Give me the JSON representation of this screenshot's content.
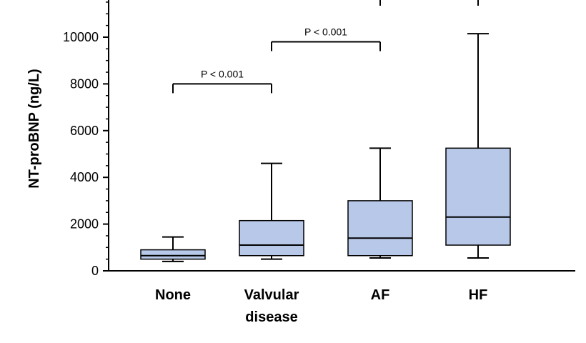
{
  "chart_data": {
    "type": "box",
    "ylabel": "NT-proBNP (ng/L)",
    "ylim": [
      0,
      12000
    ],
    "yticks": [
      0,
      2000,
      4000,
      6000,
      8000,
      10000
    ],
    "categories": [
      {
        "label_lines": [
          "None"
        ],
        "min": 400,
        "q1": 500,
        "median": 650,
        "q3": 900,
        "max": 1450
      },
      {
        "label_lines": [
          "Valvular",
          "disease"
        ],
        "min": 500,
        "q1": 650,
        "median": 1100,
        "q3": 2150,
        "max": 4600
      },
      {
        "label_lines": [
          "AF"
        ],
        "min": 550,
        "q1": 650,
        "median": 1400,
        "q3": 3000,
        "max": 5250
      },
      {
        "label_lines": [
          "HF"
        ],
        "min": 550,
        "q1": 1100,
        "median": 2300,
        "q3": 5250,
        "max": 10150
      }
    ],
    "comparisons": [
      {
        "from": 0,
        "to": 1,
        "y": 8000,
        "label": "P < 0.001"
      },
      {
        "from": 1,
        "to": 2,
        "y": 9800,
        "label": "P < 0.001"
      }
    ],
    "box_color": "#b8c8e8",
    "line_color": "#000000"
  }
}
